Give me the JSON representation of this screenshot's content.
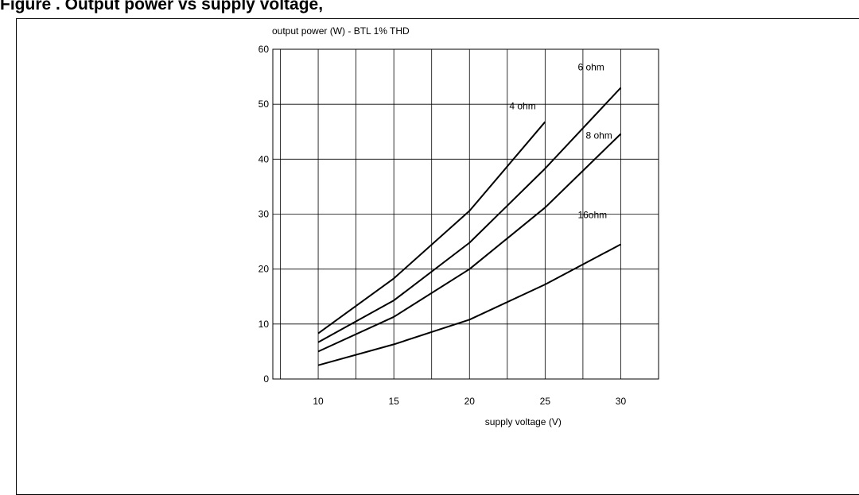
{
  "figure": {
    "caption": "Figure  . Output power vs supply voltage, "
  },
  "chart_data": {
    "type": "line",
    "title": "output power (W) - BTL 1% THD",
    "xlabel": "supply voltage (V)",
    "ylabel": "",
    "xlim": [
      7,
      32.5
    ],
    "ylim": [
      0,
      60
    ],
    "x_ticks": [
      10,
      15,
      20,
      25,
      30
    ],
    "y_ticks": [
      0,
      10,
      20,
      30,
      40,
      50,
      60
    ],
    "grid": true,
    "series": [
      {
        "name": "4 ohm",
        "x": [
          10,
          15,
          20,
          25
        ],
        "y": [
          8.3,
          18.3,
          30.6,
          46.8
        ]
      },
      {
        "name": "6 ohm",
        "x": [
          10,
          15,
          20,
          25,
          30
        ],
        "y": [
          6.7,
          14.3,
          24.8,
          38.3,
          53.0
        ]
      },
      {
        "name": "8 ohm",
        "x": [
          10,
          15,
          20,
          25,
          30
        ],
        "y": [
          5.0,
          11.3,
          20.0,
          31.2,
          44.6
        ]
      },
      {
        "name": "16ohm",
        "x": [
          10,
          15,
          20,
          25,
          30
        ],
        "y": [
          2.5,
          6.3,
          10.8,
          17.2,
          24.5
        ]
      }
    ]
  }
}
